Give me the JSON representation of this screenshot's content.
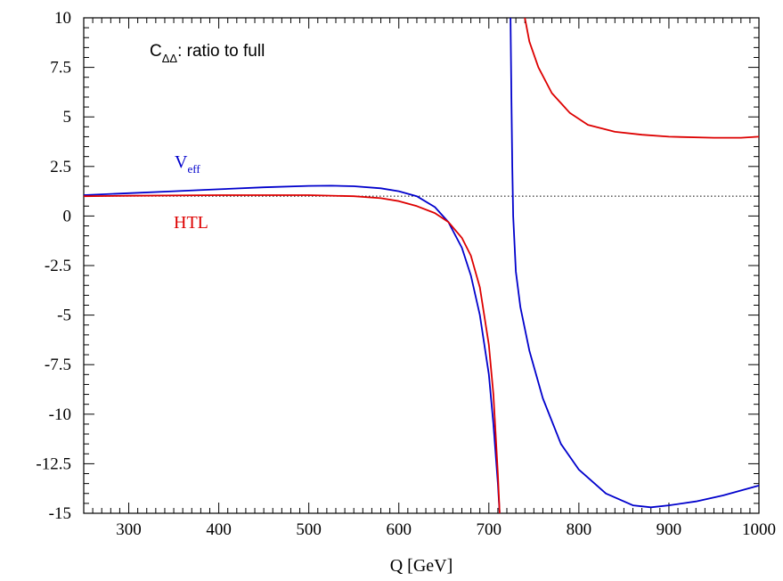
{
  "chart_data": {
    "type": "line",
    "xlabel": "Q [GeV]",
    "xlim": [
      250,
      1000
    ],
    "ylim": [
      -15,
      10
    ],
    "x_ticks": [
      300,
      400,
      500,
      600,
      700,
      800,
      900,
      1000
    ],
    "y_ticks": [
      10,
      7.5,
      5,
      2.5,
      0,
      -2.5,
      -5,
      -7.5,
      -10,
      -12.5,
      -15
    ],
    "y_tick_labels": [
      "10",
      "7.5",
      "5",
      "2.5",
      "0",
      "-2.5",
      "-5",
      "-7.5",
      "-10",
      "-12.5",
      "-15"
    ],
    "x_tick_labels": [
      "300",
      "400",
      "500",
      "600",
      "700",
      "800",
      "900",
      "1000"
    ],
    "annotation": {
      "main": "C",
      "sub": "ΔΔ",
      "rest": ": ratio to full"
    },
    "reference_line": {
      "y": 1,
      "style": "dotted",
      "color": "#000000"
    },
    "grid": false,
    "series": [
      {
        "name_main": "V",
        "name_sub": "eff",
        "color": "#0000cc",
        "segments": [
          [
            [
              250,
              1.05
            ],
            [
              300,
              1.15
            ],
            [
              350,
              1.25
            ],
            [
              400,
              1.35
            ],
            [
              450,
              1.45
            ],
            [
              500,
              1.52
            ],
            [
              525,
              1.53
            ],
            [
              550,
              1.5
            ],
            [
              580,
              1.4
            ],
            [
              600,
              1.25
            ],
            [
              620,
              1.0
            ],
            [
              640,
              0.45
            ],
            [
              655,
              -0.3
            ],
            [
              670,
              -1.6
            ],
            [
              680,
              -3.0
            ],
            [
              690,
              -5.0
            ],
            [
              700,
              -8.0
            ],
            [
              705,
              -10.5
            ],
            [
              710,
              -13.5
            ],
            [
              712,
              -15
            ]
          ],
          [
            [
              724,
              10
            ],
            [
              725,
              6.0
            ],
            [
              726,
              2.5
            ],
            [
              727,
              0
            ],
            [
              730,
              -2.8
            ],
            [
              735,
              -4.6
            ],
            [
              745,
              -6.8
            ],
            [
              760,
              -9.2
            ],
            [
              780,
              -11.5
            ],
            [
              800,
              -12.8
            ],
            [
              830,
              -14.0
            ],
            [
              860,
              -14.6
            ],
            [
              880,
              -14.7
            ],
            [
              900,
              -14.6
            ],
            [
              930,
              -14.4
            ],
            [
              960,
              -14.1
            ],
            [
              1000,
              -13.6
            ]
          ]
        ]
      },
      {
        "name": "HTL",
        "color": "#dd0000",
        "segments": [
          [
            [
              250,
              1.0
            ],
            [
              300,
              1.02
            ],
            [
              400,
              1.05
            ],
            [
              500,
              1.05
            ],
            [
              550,
              1.0
            ],
            [
              580,
              0.9
            ],
            [
              600,
              0.75
            ],
            [
              620,
              0.5
            ],
            [
              640,
              0.15
            ],
            [
              655,
              -0.3
            ],
            [
              670,
              -1.1
            ],
            [
              680,
              -2.0
            ],
            [
              690,
              -3.6
            ],
            [
              700,
              -6.5
            ],
            [
              705,
              -9.0
            ],
            [
              710,
              -13.0
            ],
            [
              712,
              -15
            ]
          ],
          [
            [
              740,
              10
            ],
            [
              745,
              8.8
            ],
            [
              755,
              7.5
            ],
            [
              770,
              6.2
            ],
            [
              790,
              5.2
            ],
            [
              810,
              4.6
            ],
            [
              840,
              4.25
            ],
            [
              870,
              4.1
            ],
            [
              900,
              4.0
            ],
            [
              950,
              3.95
            ],
            [
              980,
              3.95
            ],
            [
              1000,
              4.0
            ]
          ]
        ]
      }
    ]
  }
}
